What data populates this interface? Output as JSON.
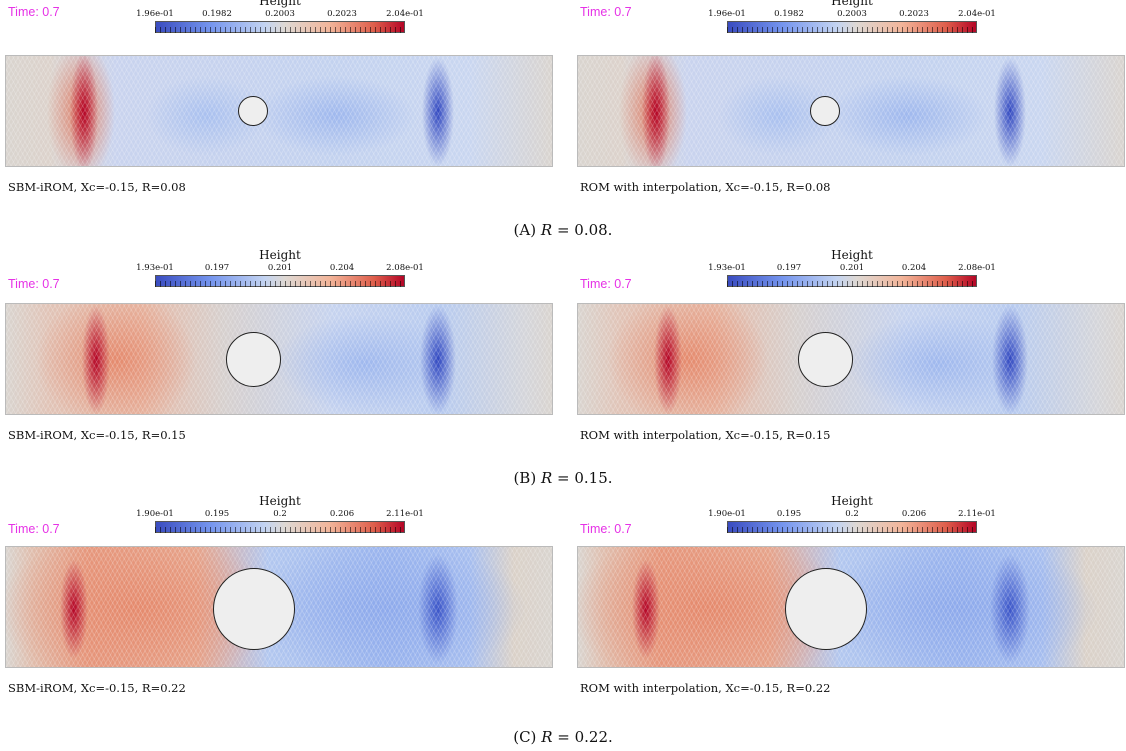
{
  "rows": [
    {
      "id": "a",
      "subcaption_prefix": "(A)",
      "subcaption_var": "R",
      "subcaption_value": " = 0.08.",
      "colorbar": {
        "title": "Height",
        "ticks": [
          "1.96e-01",
          "0.1982",
          "0.2003",
          "0.2023",
          "2.04e-01"
        ]
      },
      "panels": [
        {
          "time": "Time: 0.7",
          "caption": "SBM-iROM, Xc=-0.15, R=0.08"
        },
        {
          "time": "Time: 0.7",
          "caption": "ROM with interpolation, Xc=-0.15, R=0.08"
        }
      ]
    },
    {
      "id": "b",
      "subcaption_prefix": "(B)",
      "subcaption_var": "R",
      "subcaption_value": " = 0.15.",
      "colorbar": {
        "title": "Height",
        "ticks": [
          "1.93e-01",
          "0.197",
          "0.201",
          "0.204",
          "2.08e-01"
        ]
      },
      "panels": [
        {
          "time": "Time: 0.7",
          "caption": "SBM-iROM, Xc=-0.15, R=0.15"
        },
        {
          "time": "Time: 0.7",
          "caption": "ROM with interpolation, Xc=-0.15, R=0.15"
        }
      ]
    },
    {
      "id": "c",
      "subcaption_prefix": "(C)",
      "subcaption_var": "R",
      "subcaption_value": " = 0.22.",
      "colorbar": {
        "title": "Height",
        "ticks": [
          "1.90e-01",
          "0.195",
          "0.2",
          "0.206",
          "2.11e-01"
        ]
      },
      "panels": [
        {
          "time": "Time: 0.7",
          "caption": "SBM-iROM, Xc=-0.15, R=0.22"
        },
        {
          "time": "Time: 0.7",
          "caption": "ROM with interpolation, Xc=-0.15, R=0.22"
        }
      ]
    }
  ],
  "colors": {
    "time_label": "#e632e6",
    "low": "#3a4cc0",
    "mid": "#ded8d3",
    "high": "#b40426",
    "obstacle": "#eeeeee"
  }
}
